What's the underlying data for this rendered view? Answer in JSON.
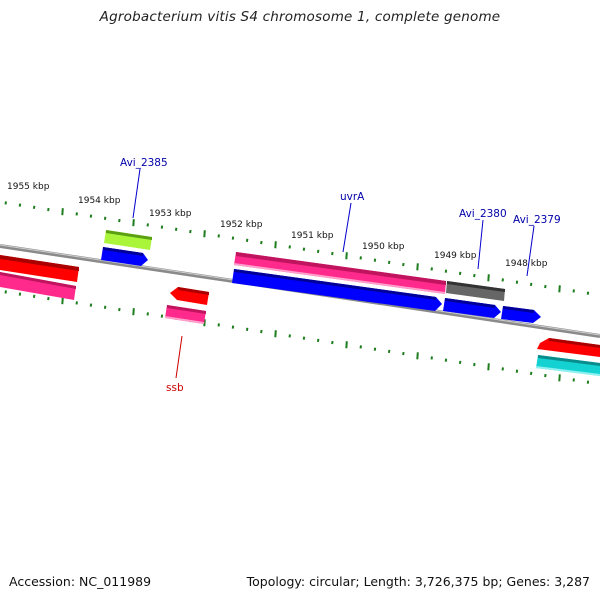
{
  "title": "Agrobacterium vitis S4 chromosome 1, complete genome",
  "footer": {
    "accession": "Accession: NC_011989",
    "topology": "Topology: circular; Length: 3,726,375 bp; Genes: 3,287"
  },
  "ruler_labels": [
    "1955 kbp",
    "1954 kbp",
    "1953 kbp",
    "1952 kbp",
    "1951 kbp",
    "1950 kbp",
    "1949 kbp",
    "1948 kbp"
  ],
  "gene_labels": [
    {
      "text": "Avi_2385",
      "color": "#0000aa"
    },
    {
      "text": "uvrA",
      "color": "#0000aa"
    },
    {
      "text": "Avi_2380",
      "color": "#0000aa"
    },
    {
      "text": "Avi_2379",
      "color": "#0000aa"
    },
    {
      "text": "ssb",
      "color": "#cc0000"
    }
  ],
  "colors": {
    "backbone": "#8a8a8a",
    "ticks": "#1e7d1e",
    "red": "#ff0000",
    "pink": "#ff2a8c",
    "blue": "#0000ff",
    "lime": "#aaf53a",
    "gray": "#666666",
    "cyan": "#14d2d2"
  }
}
